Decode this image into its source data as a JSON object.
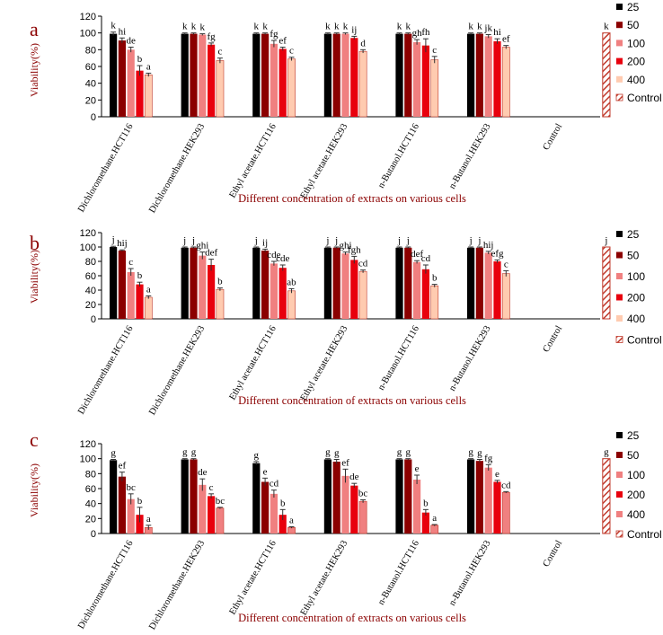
{
  "colors": {
    "25": "#000000",
    "50": "#8b0000",
    "100": "#f08080",
    "200": "#e8000d",
    "400": "#ffcbb0",
    "control": "#c0392b",
    "axis": "#000000",
    "text_red": "#8b0000"
  },
  "chart_data": [
    {
      "type": "bar",
      "panel_label": "a",
      "ylabel": "Viability(%)",
      "xlabel": "Different  concentration of extracts on various cells",
      "ylim": [
        0,
        120
      ],
      "yticks": [
        0,
        20,
        40,
        60,
        80,
        100,
        120
      ],
      "grid": false,
      "legend_position": "right",
      "categories": [
        "Dichloromethane.HCT116",
        "Dichloromethane.HEK293",
        "Ethyl acetate.HCT116",
        "Ethyl acetate.HEK293",
        "n-Butanol.HCT116",
        "n-Butanol.HEK293",
        "Control"
      ],
      "series": [
        {
          "name": "25",
          "color": "#000000",
          "values": [
            99,
            99,
            99,
            99,
            99,
            99,
            null
          ],
          "errors": [
            2,
            1,
            1,
            1,
            1,
            1,
            null
          ],
          "labels": [
            "k",
            "k",
            "k",
            "k",
            "k",
            "k",
            ""
          ]
        },
        {
          "name": "50",
          "color": "#8b0000",
          "values": [
            91,
            99,
            99,
            99,
            99,
            99,
            null
          ],
          "errors": [
            3,
            1,
            1,
            1,
            1,
            1,
            null
          ],
          "labels": [
            "hi",
            "k",
            "k",
            "k",
            "k",
            "k",
            ""
          ]
        },
        {
          "name": "100",
          "color": "#f08080",
          "values": [
            80,
            98,
            87,
            99,
            89,
            96,
            null
          ],
          "errors": [
            3,
            1,
            4,
            1,
            3,
            2,
            null
          ],
          "labels": [
            "de",
            "k",
            "fg",
            "k",
            "gh",
            "jk",
            ""
          ]
        },
        {
          "name": "200",
          "color": "#e8000d",
          "values": [
            55,
            86,
            81,
            94,
            85,
            90,
            null
          ],
          "errors": [
            6,
            2,
            2,
            2,
            8,
            3,
            null
          ],
          "labels": [
            "b",
            "fg",
            "ef",
            "ij",
            "fh",
            "hi",
            ""
          ]
        },
        {
          "name": "400",
          "color": "#ffcbb0",
          "values": [
            50,
            67,
            69,
            78,
            68,
            83,
            null
          ],
          "errors": [
            2,
            3,
            2,
            2,
            4,
            2,
            null
          ],
          "labels": [
            "a",
            "c",
            "c",
            "d",
            "c",
            "ef",
            ""
          ]
        },
        {
          "name": "Control",
          "color": "#c0392b",
          "pattern": "hatch",
          "values": [
            null,
            null,
            null,
            null,
            null,
            null,
            100
          ],
          "errors": [
            null,
            null,
            null,
            null,
            null,
            null,
            0
          ],
          "labels": [
            "",
            "",
            "",
            "",
            "",
            "",
            "k"
          ]
        }
      ]
    },
    {
      "type": "bar",
      "panel_label": "b",
      "ylabel": "Viability(%)",
      "xlabel": "Different  concentration of extracts on various cells",
      "ylim": [
        0,
        120
      ],
      "yticks": [
        0,
        20,
        40,
        60,
        80,
        100,
        120
      ],
      "grid": false,
      "legend_position": "right",
      "categories": [
        "Dichloromethane.HCT116",
        "Dichloromethane.HEK293",
        "Ethyl acetate.HCT116",
        "Ethyl acetate.HEK293",
        "n-Butanol.HCT116",
        "n-Butanol.HEK293",
        "Control"
      ],
      "series": [
        {
          "name": "25",
          "color": "#000000",
          "values": [
            100,
            99,
            99,
            99,
            99,
            99,
            null
          ],
          "errors": [
            1,
            1,
            1,
            1,
            1,
            1,
            null
          ],
          "labels": [
            "j",
            "j",
            "j",
            "j",
            "j",
            "j",
            ""
          ]
        },
        {
          "name": "50",
          "color": "#8b0000",
          "values": [
            95,
            99,
            95,
            99,
            99,
            99,
            null
          ],
          "errors": [
            1,
            1,
            2,
            1,
            1,
            1,
            null
          ],
          "labels": [
            "hij",
            "j",
            "ij",
            "j",
            "j",
            "j",
            ""
          ]
        },
        {
          "name": "100",
          "color": "#f08080",
          "values": [
            65,
            88,
            77,
            91,
            79,
            92,
            null
          ],
          "errors": [
            5,
            5,
            3,
            2,
            2,
            2,
            null
          ],
          "labels": [
            "c",
            "ghi",
            "cde",
            "ghi",
            "def",
            "hij",
            ""
          ]
        },
        {
          "name": "200",
          "color": "#e8000d",
          "values": [
            48,
            75,
            71,
            82,
            69,
            80,
            null
          ],
          "errors": [
            3,
            8,
            4,
            5,
            6,
            2,
            null
          ],
          "labels": [
            "b",
            "def",
            "cde",
            "fgh",
            "cd",
            "efg",
            ""
          ]
        },
        {
          "name": "400",
          "color": "#ffcbb0",
          "values": [
            30,
            41,
            39,
            66,
            46,
            63,
            null
          ],
          "errors": [
            2,
            2,
            3,
            2,
            2,
            4,
            null
          ],
          "labels": [
            "a",
            "b",
            "ab",
            "cd",
            "b",
            "c",
            ""
          ]
        },
        {
          "name": "Control",
          "color": "#c0392b",
          "pattern": "hatch",
          "values": [
            null,
            null,
            null,
            null,
            null,
            null,
            100
          ],
          "errors": [
            null,
            null,
            null,
            null,
            null,
            null,
            0
          ],
          "labels": [
            "",
            "",
            "",
            "",
            "",
            "",
            "j"
          ]
        }
      ]
    },
    {
      "type": "bar",
      "panel_label": "c",
      "ylabel": "Viability(%)",
      "xlabel": "Different  concentration of extracts on various cells",
      "ylim": [
        0,
        120
      ],
      "yticks": [
        0,
        20,
        40,
        60,
        80,
        100,
        120
      ],
      "grid": false,
      "legend_position": "right",
      "categories": [
        "Dichloromethane.HCT116",
        "Dichloromethane.HEK293",
        "Ethyl acetate.HCT116",
        "Ethyl acetate.HEK293",
        "n-Butanol.HCT116",
        "n-Butanol.HEK293",
        "Control"
      ],
      "series": [
        {
          "name": "25",
          "color": "#000000",
          "values": [
            98,
            99,
            94,
            99,
            99,
            99,
            null
          ],
          "errors": [
            1,
            1,
            2,
            1,
            1,
            1,
            null
          ],
          "labels": [
            "g",
            "g",
            "g",
            "g",
            "g",
            "g",
            ""
          ]
        },
        {
          "name": "50",
          "color": "#8b0000",
          "values": [
            76,
            99,
            69,
            96,
            99,
            97,
            null
          ],
          "errors": [
            6,
            1,
            5,
            3,
            1,
            2,
            null
          ],
          "labels": [
            "ef",
            "g",
            "e",
            "g",
            "g",
            "g",
            ""
          ]
        },
        {
          "name": "100",
          "color": "#f08080",
          "values": [
            46,
            65,
            53,
            77,
            72,
            88,
            null
          ],
          "errors": [
            7,
            8,
            5,
            9,
            6,
            4,
            null
          ],
          "labels": [
            "bc",
            "de",
            "cd",
            "ef",
            "e",
            "fg",
            ""
          ]
        },
        {
          "name": "200",
          "color": "#e8000d",
          "values": [
            25,
            50,
            25,
            64,
            28,
            69,
            null
          ],
          "errors": [
            10,
            3,
            7,
            3,
            4,
            2,
            null
          ],
          "labels": [
            "b",
            "c",
            "b",
            "de",
            "b",
            "e",
            ""
          ]
        },
        {
          "name": "400",
          "color": "#f08080",
          "values": [
            8,
            34,
            8,
            43,
            11,
            55,
            null
          ],
          "errors": [
            3,
            1,
            1,
            2,
            1,
            1,
            null
          ],
          "labels": [
            "a",
            "bc",
            "a",
            "bc",
            "a",
            "cd",
            ""
          ]
        },
        {
          "name": "Control",
          "color": "#c0392b",
          "pattern": "hatch",
          "values": [
            null,
            null,
            null,
            null,
            null,
            null,
            100
          ],
          "errors": [
            null,
            null,
            null,
            null,
            null,
            null,
            0
          ],
          "labels": [
            "",
            "",
            "",
            "",
            "",
            "",
            "g"
          ]
        }
      ]
    }
  ]
}
